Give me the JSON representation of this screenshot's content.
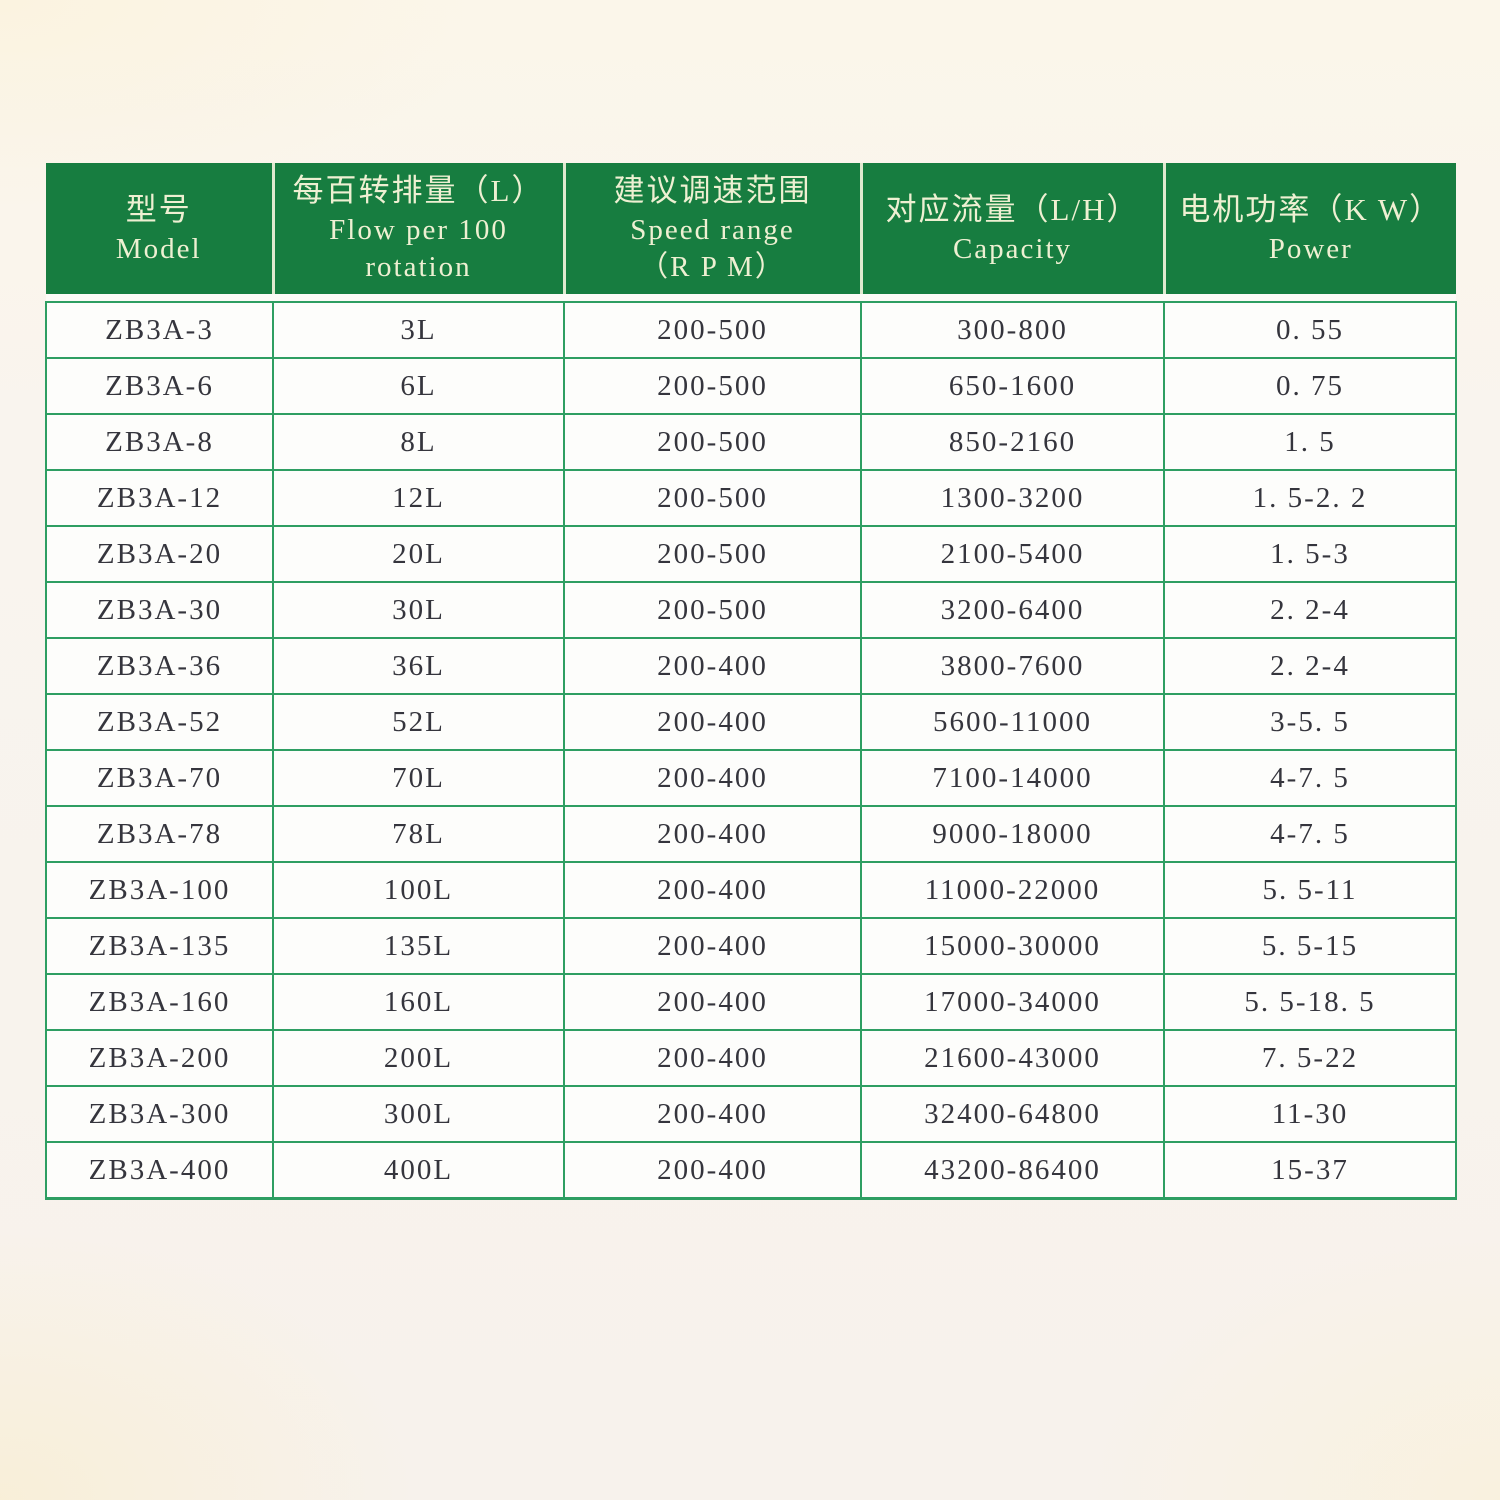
{
  "colors": {
    "header_bg": "#177d40",
    "header_text": "#eef0d2",
    "grid_border": "#2e9e62",
    "header_divider": "#dfe9cf",
    "cell_bg": "#fdfdfb",
    "cell_text": "#35353d",
    "page_bg": "#f8f3ec"
  },
  "table": {
    "headers": [
      {
        "id": "model",
        "lines": [
          "型号",
          "Model"
        ]
      },
      {
        "id": "flow",
        "lines": [
          "每百转排量（L）",
          "Flow per 100",
          "rotation"
        ]
      },
      {
        "id": "speed",
        "lines": [
          "建议调速范围",
          "Speed range",
          "（R P M）"
        ]
      },
      {
        "id": "capacity",
        "lines": [
          "对应流量（L/H）",
          "Capacity"
        ]
      },
      {
        "id": "power",
        "lines": [
          "电机功率（K W）",
          "Power"
        ]
      }
    ],
    "rows": [
      [
        "ZB3A-3",
        "3L",
        "200-500",
        "300-800",
        "0. 55"
      ],
      [
        "ZB3A-6",
        "6L",
        "200-500",
        "650-1600",
        "0. 75"
      ],
      [
        "ZB3A-8",
        "8L",
        "200-500",
        "850-2160",
        "1. 5"
      ],
      [
        "ZB3A-12",
        "12L",
        "200-500",
        "1300-3200",
        "1. 5-2. 2"
      ],
      [
        "ZB3A-20",
        "20L",
        "200-500",
        "2100-5400",
        "1. 5-3"
      ],
      [
        "ZB3A-30",
        "30L",
        "200-500",
        "3200-6400",
        "2. 2-4"
      ],
      [
        "ZB3A-36",
        "36L",
        "200-400",
        "3800-7600",
        "2. 2-4"
      ],
      [
        "ZB3A-52",
        "52L",
        "200-400",
        "5600-11000",
        "3-5. 5"
      ],
      [
        "ZB3A-70",
        "70L",
        "200-400",
        "7100-14000",
        "4-7. 5"
      ],
      [
        "ZB3A-78",
        "78L",
        "200-400",
        "9000-18000",
        "4-7. 5"
      ],
      [
        "ZB3A-100",
        "100L",
        "200-400",
        "11000-22000",
        "5. 5-11"
      ],
      [
        "ZB3A-135",
        "135L",
        "200-400",
        "15000-30000",
        "5. 5-15"
      ],
      [
        "ZB3A-160",
        "160L",
        "200-400",
        "17000-34000",
        "5. 5-18. 5"
      ],
      [
        "ZB3A-200",
        "200L",
        "200-400",
        "21600-43000",
        "7. 5-22"
      ],
      [
        "ZB3A-300",
        "300L",
        "200-400",
        "32400-64800",
        "11-30"
      ],
      [
        "ZB3A-400",
        "400L",
        "200-400",
        "43200-86400",
        "15-37"
      ]
    ]
  }
}
